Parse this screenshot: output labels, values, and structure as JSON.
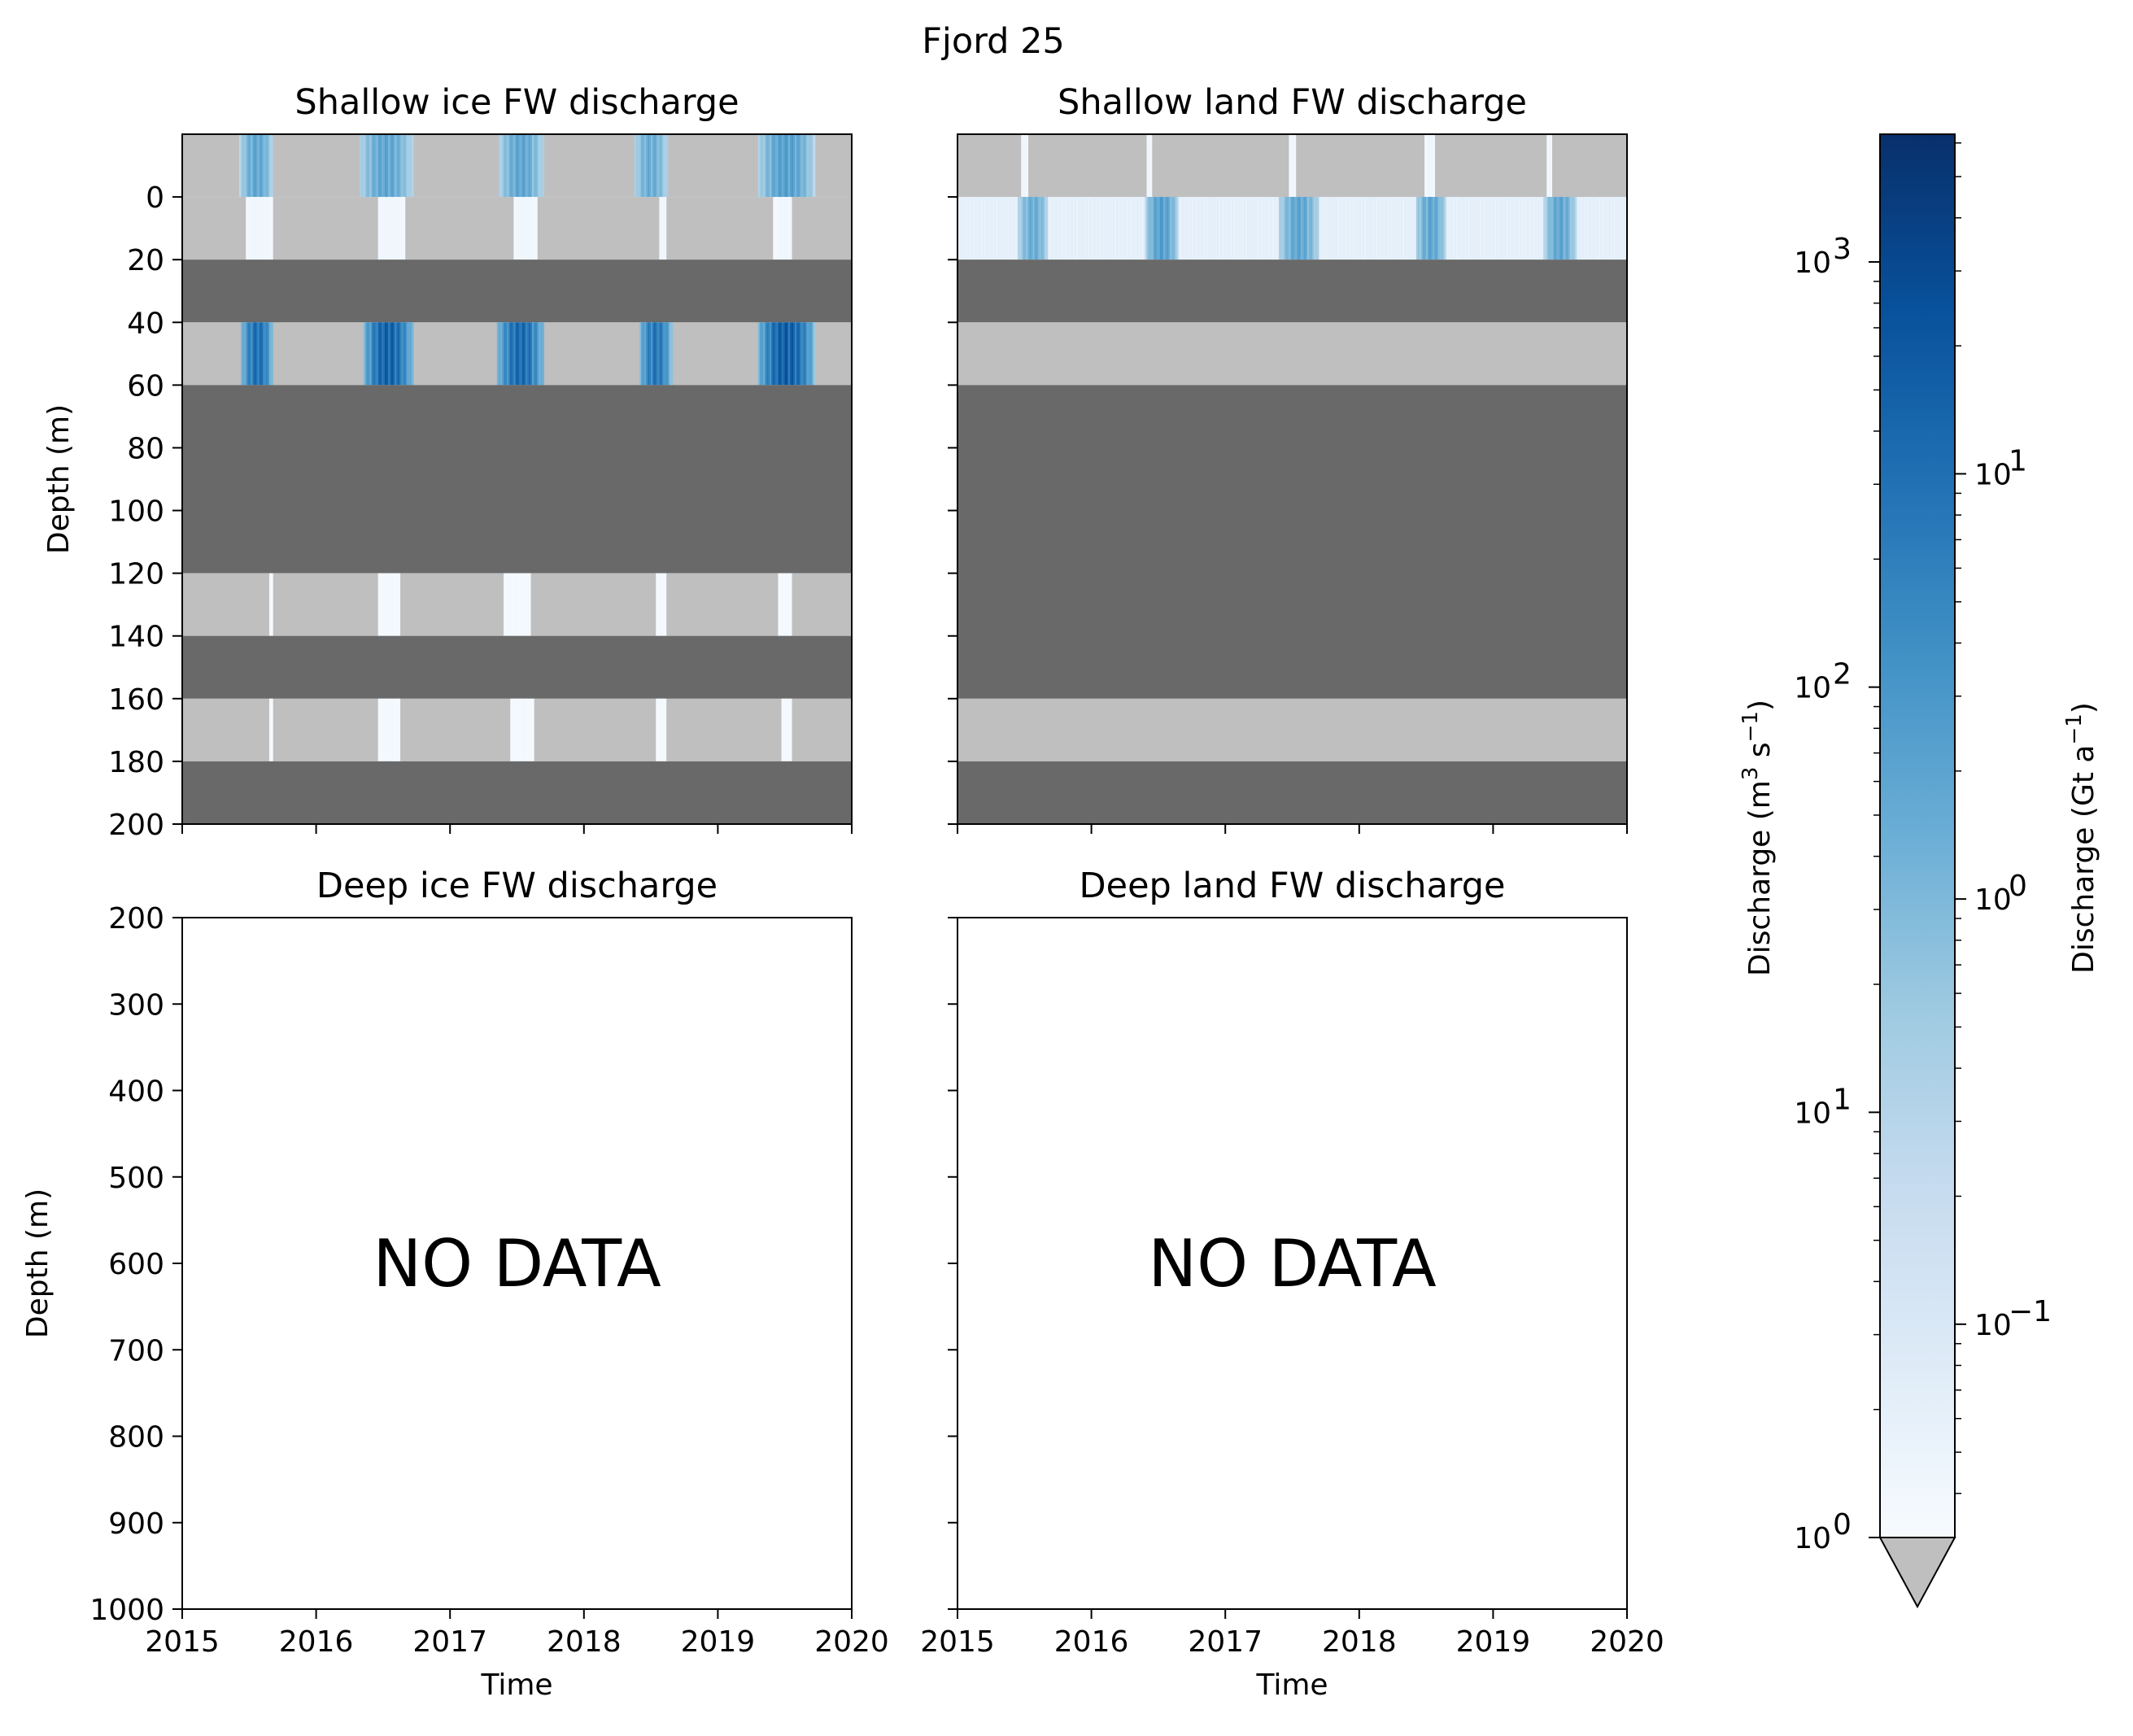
{
  "figure": {
    "title": "Fjord 25"
  },
  "colors": {
    "no_discharge": "#bfbfbf",
    "no_layer": "#696969",
    "cmap": [
      "#f7fbff",
      "#deebf7",
      "#c6dbef",
      "#9ecae1",
      "#6baed6",
      "#4292c6",
      "#2171b5",
      "#08519c",
      "#08306b"
    ]
  },
  "chart_data": [
    {
      "type": "heatmap",
      "title": "Shallow ice FW discharge",
      "xlabel": "",
      "ylabel": "Depth (m)",
      "xlim": [
        2015,
        2020
      ],
      "ylim": [
        200,
        -20
      ],
      "xticks": [
        "2015",
        "2016",
        "2017",
        "2018",
        "2019",
        "2020"
      ],
      "yticks": [
        "0",
        "20",
        "40",
        "60",
        "80",
        "100",
        "120",
        "140",
        "160",
        "180",
        "200"
      ],
      "xticklabels_visible": false,
      "layers": [
        {
          "depth": [
            -20,
            0
          ],
          "status": "data",
          "pulses": [
            [
              2015.43,
              2015.68,
              0.55
            ],
            [
              2016.32,
              2016.72,
              0.55
            ],
            [
              2017.36,
              2017.7,
              0.55
            ],
            [
              2018.37,
              2018.63,
              0.52
            ],
            [
              2019.3,
              2019.72,
              0.58
            ]
          ]
        },
        {
          "depth": [
            0,
            20
          ],
          "status": "data",
          "pulses": [
            [
              2015.47,
              2015.67,
              0.04
            ],
            [
              2016.46,
              2016.66,
              0.04
            ],
            [
              2017.48,
              2017.65,
              0.04
            ],
            [
              2018.56,
              2018.62,
              0.04
            ],
            [
              2019.41,
              2019.68,
              0.04
            ]
          ]
        },
        {
          "depth": [
            20,
            40
          ],
          "status": "no_layer"
        },
        {
          "depth": [
            40,
            60
          ],
          "status": "data",
          "pulses": [
            [
              2015.44,
              2015.68,
              0.78
            ],
            [
              2016.35,
              2016.72,
              0.83
            ],
            [
              2017.35,
              2017.7,
              0.8
            ],
            [
              2018.41,
              2018.66,
              0.75
            ],
            [
              2019.3,
              2019.72,
              0.85
            ]
          ]
        },
        {
          "depth": [
            60,
            120
          ],
          "status": "no_layer"
        },
        {
          "depth": [
            120,
            140
          ],
          "status": "data",
          "pulses": [
            [
              2015.65,
              2015.68,
              0.02
            ],
            [
              2016.46,
              2016.62,
              0.02
            ],
            [
              2017.4,
              2017.6,
              0.02
            ],
            [
              2018.54,
              2018.62,
              0.02
            ],
            [
              2019.45,
              2019.71,
              0.02
            ]
          ]
        },
        {
          "depth": [
            140,
            160
          ],
          "status": "no_layer"
        },
        {
          "depth": [
            160,
            180
          ],
          "status": "data",
          "pulses": [
            [
              2015.65,
              2015.68,
              0.02
            ],
            [
              2016.46,
              2016.62,
              0.02
            ],
            [
              2017.45,
              2017.63,
              0.02
            ],
            [
              2018.54,
              2018.68,
              0.02
            ],
            [
              2019.47,
              2019.63,
              0.02
            ]
          ]
        },
        {
          "depth": [
            180,
            200
          ],
          "status": "no_layer"
        }
      ]
    },
    {
      "type": "heatmap",
      "title": "Shallow land FW discharge",
      "xlabel": "",
      "ylabel": "",
      "xlim": [
        2015,
        2020
      ],
      "ylim": [
        200,
        -20
      ],
      "xticks": [
        "2015",
        "2016",
        "2017",
        "2018",
        "2019",
        "2020"
      ],
      "yticks": [
        "0",
        "20",
        "40",
        "60",
        "80",
        "100",
        "120",
        "140",
        "160",
        "180",
        "200"
      ],
      "xticklabels_visible": false,
      "yticklabels_visible": false,
      "layers": [
        {
          "depth": [
            -20,
            0
          ],
          "status": "data",
          "pulses": [
            [
              2015.47,
              2015.53,
              0.04
            ],
            [
              2016.41,
              2016.45,
              0.04
            ],
            [
              2017.47,
              2017.53,
              0.04
            ],
            [
              2018.49,
              2018.56,
              0.04
            ],
            [
              2019.4,
              2019.44,
              0.04
            ]
          ]
        },
        {
          "depth": [
            0,
            20
          ],
          "status": "data",
          "baseline": 0.06,
          "pulses": [
            [
              2015.45,
              2015.68,
              0.52
            ],
            [
              2016.4,
              2016.65,
              0.58
            ],
            [
              2017.4,
              2017.7,
              0.55
            ],
            [
              2018.42,
              2018.65,
              0.55
            ],
            [
              2019.38,
              2019.62,
              0.55
            ]
          ]
        },
        {
          "depth": [
            20,
            40
          ],
          "status": "no_layer"
        },
        {
          "depth": [
            40,
            60
          ],
          "status": "data",
          "pulses": []
        },
        {
          "depth": [
            60,
            160
          ],
          "status": "no_layer"
        },
        {
          "depth": [
            160,
            180
          ],
          "status": "data",
          "pulses": []
        },
        {
          "depth": [
            180,
            200
          ],
          "status": "no_layer"
        }
      ]
    },
    {
      "type": "heatmap",
      "title": "Deep ice FW discharge",
      "xlabel": "Time",
      "ylabel": "Depth (m)",
      "xlim": [
        2015,
        2020
      ],
      "ylim": [
        1000,
        200
      ],
      "xticks": [
        "2015",
        "2016",
        "2017",
        "2018",
        "2019",
        "2020"
      ],
      "yticks": [
        "200",
        "300",
        "400",
        "500",
        "600",
        "700",
        "800",
        "900",
        "1000"
      ],
      "annotation": "NO DATA",
      "layers": []
    },
    {
      "type": "heatmap",
      "title": "Deep land FW discharge",
      "xlabel": "Time",
      "ylabel": "",
      "xlim": [
        2015,
        2020
      ],
      "ylim": [
        1000,
        200
      ],
      "xticks": [
        "2015",
        "2016",
        "2017",
        "2018",
        "2019",
        "2020"
      ],
      "yticks": [
        "200",
        "300",
        "400",
        "500",
        "600",
        "700",
        "800",
        "900",
        "1000"
      ],
      "yticklabels_visible": false,
      "annotation": "NO DATA",
      "layers": []
    }
  ],
  "colorbar": {
    "scale": "log",
    "extend": "min",
    "left_label": "Discharge (m",
    "left_label_sup": "3",
    "left_label_mid": " s",
    "left_label_sup2": "−1",
    "left_label_end": ")",
    "right_label": "Discharge (Gt a",
    "right_label_sup": "−1",
    "right_label_end": ")",
    "left_ticks": [
      {
        "base": "10",
        "exp": "0",
        "frac": 0.0
      },
      {
        "base": "10",
        "exp": "1",
        "frac": 0.303
      },
      {
        "base": "10",
        "exp": "2",
        "frac": 0.606
      },
      {
        "base": "10",
        "exp": "3",
        "frac": 0.909
      }
    ],
    "right_ticks": [
      {
        "base": "10",
        "exp": "−1",
        "frac": 0.152
      },
      {
        "base": "10",
        "exp": "0",
        "frac": 0.455
      },
      {
        "base": "10",
        "exp": "1",
        "frac": 0.758
      }
    ]
  }
}
